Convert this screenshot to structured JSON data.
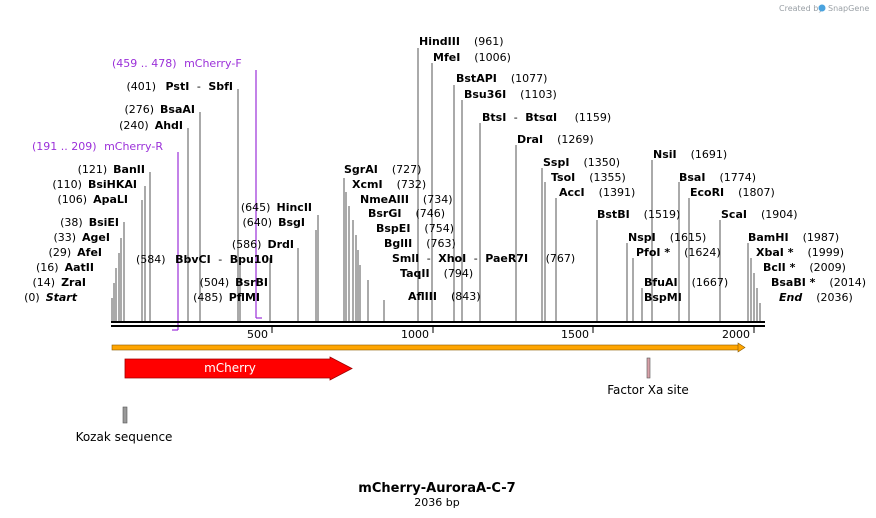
{
  "credit": {
    "prefix": "Created by",
    "brand": "SnapGene"
  },
  "map": {
    "title": "mCherry-AuroraA-C-7",
    "length_label": "2036 bp",
    "total_bp": 2036,
    "ticks": [
      500,
      1000,
      1500,
      2000
    ],
    "tick_labels": [
      "500",
      "1000",
      "1500",
      "2000"
    ]
  },
  "colors": {
    "primer": "#9b30d9",
    "cds": "#ff0000",
    "backbone": "#000000",
    "feature": "#ffa500"
  },
  "primers": [
    {
      "range": "(459 .. 478)",
      "name": "mCherry-F",
      "start": 459,
      "end": 478
    },
    {
      "range": "(191 .. 209)",
      "name": "mCherry-R",
      "start": 191,
      "end": 209
    }
  ],
  "features": [
    {
      "name": "mCherry",
      "start": 1,
      "end": 711,
      "type": "cds"
    },
    {
      "name": "Factor Xa site",
      "start": 1700,
      "end": 1711,
      "type": "site"
    },
    {
      "name": "Kozak sequence",
      "start": 1,
      "end": 10,
      "type": "site"
    }
  ],
  "left_sites": [
    {
      "pos_label": "(401)",
      "name": "PstI",
      "name2": "SbfI",
      "pos": 401
    },
    {
      "pos_label": "(276)",
      "name": "BsaAI",
      "pos": 276
    },
    {
      "pos_label": "(240)",
      "name": "AhdI",
      "pos": 240
    },
    {
      "pos_label": "(121)",
      "name": "BanII",
      "pos": 121
    },
    {
      "pos_label": "(110)",
      "name": "BsiHKAI",
      "pos": 110
    },
    {
      "pos_label": "(106)",
      "name": "ApaLI",
      "pos": 106
    },
    {
      "pos_label": "(38)",
      "name": "BsiEI",
      "pos": 38
    },
    {
      "pos_label": "(33)",
      "name": "AgeI",
      "pos": 33
    },
    {
      "pos_label": "(29)",
      "name": "AfeI",
      "pos": 29
    },
    {
      "pos_label": "(16)",
      "name": "AatII",
      "pos": 16
    },
    {
      "pos_label": "(14)",
      "name": "ZraI",
      "pos": 14
    },
    {
      "pos_label": "(0)",
      "name": "Start",
      "pos": 0
    }
  ],
  "mid_sites": [
    {
      "pos_label": "(584)",
      "name": "BbvCI",
      "name2": "Bpu10I",
      "pos": 584
    },
    {
      "pos_label": "(645)",
      "name": "HincII",
      "pos": 645
    },
    {
      "pos_label": "(640)",
      "name": "BsgI",
      "pos": 640
    },
    {
      "pos_label": "(586)",
      "name": "DrdI",
      "pos": 586
    },
    {
      "pos_label": "(504)",
      "name": "BsrBI",
      "pos": 504
    },
    {
      "pos_label": "(485)",
      "name": "PflMI",
      "pos": 485
    }
  ],
  "center_sites": [
    {
      "name": "HindIII",
      "pos_label": "(961)",
      "pos": 961
    },
    {
      "name": "MfeI",
      "pos_label": "(1006)",
      "pos": 1006
    },
    {
      "name": "BstAPI",
      "pos_label": "(1077)",
      "pos": 1077
    },
    {
      "name": "Bsu36I",
      "pos_label": "(1103)",
      "pos": 1103
    },
    {
      "name": "BtsI",
      "name2": "BtsαI",
      "pos_label": "(1159)",
      "pos": 1159
    },
    {
      "name": "DraI",
      "pos_label": "(1269)",
      "pos": 1269
    },
    {
      "name": "SspI",
      "pos_label": "(1350)",
      "pos": 1350
    },
    {
      "name": "TsoI",
      "pos_label": "(1355)",
      "pos": 1355
    },
    {
      "name": "AccI",
      "pos_label": "(1391)",
      "pos": 1391
    },
    {
      "name": "BstBI",
      "pos_label": "(1519)",
      "pos": 1519
    },
    {
      "name": "NsiI",
      "pos_label": "(1691)",
      "pos": 1691
    },
    {
      "name": "BsaI",
      "pos_label": "(1774)",
      "pos": 1774
    },
    {
      "name": "EcoRI",
      "pos_label": "(1807)",
      "pos": 1807
    },
    {
      "name": "ScaI",
      "pos_label": "(1904)",
      "pos": 1904
    },
    {
      "name": "NspI",
      "pos_label": "(1615)",
      "pos": 1615
    },
    {
      "name": "PfoI *",
      "pos_label": "(1624)",
      "pos": 1624
    },
    {
      "name": "BfuAI",
      "pos_label": "(1667)",
      "pos": 1667
    },
    {
      "name": "BspMI",
      "pos": 1667
    }
  ],
  "xho_sites": [
    {
      "name": "SgrAI",
      "pos_label": "(727)",
      "pos": 727
    },
    {
      "name": "XcmI",
      "pos_label": "(732)",
      "pos": 732
    },
    {
      "name": "NmeAIII",
      "pos_label": "(734)",
      "pos": 734
    },
    {
      "name": "BsrGI",
      "pos_label": "(746)",
      "pos": 746
    },
    {
      "name": "BspEI",
      "pos_label": "(754)",
      "pos": 754
    },
    {
      "name": "BglII",
      "pos_label": "(763)",
      "pos": 763
    },
    {
      "name": "SmlI",
      "name2": "XhoI",
      "name3": "PaeR7I",
      "pos_label": "(767)",
      "pos": 767
    },
    {
      "name": "TaqII",
      "pos_label": "(794)",
      "pos": 794
    },
    {
      "name": "AflIII",
      "pos_label": "(843)",
      "pos": 843
    }
  ],
  "end_sites": [
    {
      "name": "BamHI",
      "pos_label": "(1987)",
      "pos": 1987
    },
    {
      "name": "XbaI *",
      "pos_label": "(1999)",
      "pos": 1999
    },
    {
      "name": "BclI *",
      "pos_label": "(2009)",
      "pos": 2009
    },
    {
      "name": "BsaBI *",
      "pos_label": "(2014)",
      "pos": 2014
    },
    {
      "name": "End",
      "pos_label": "(2036)",
      "pos": 2036
    }
  ]
}
